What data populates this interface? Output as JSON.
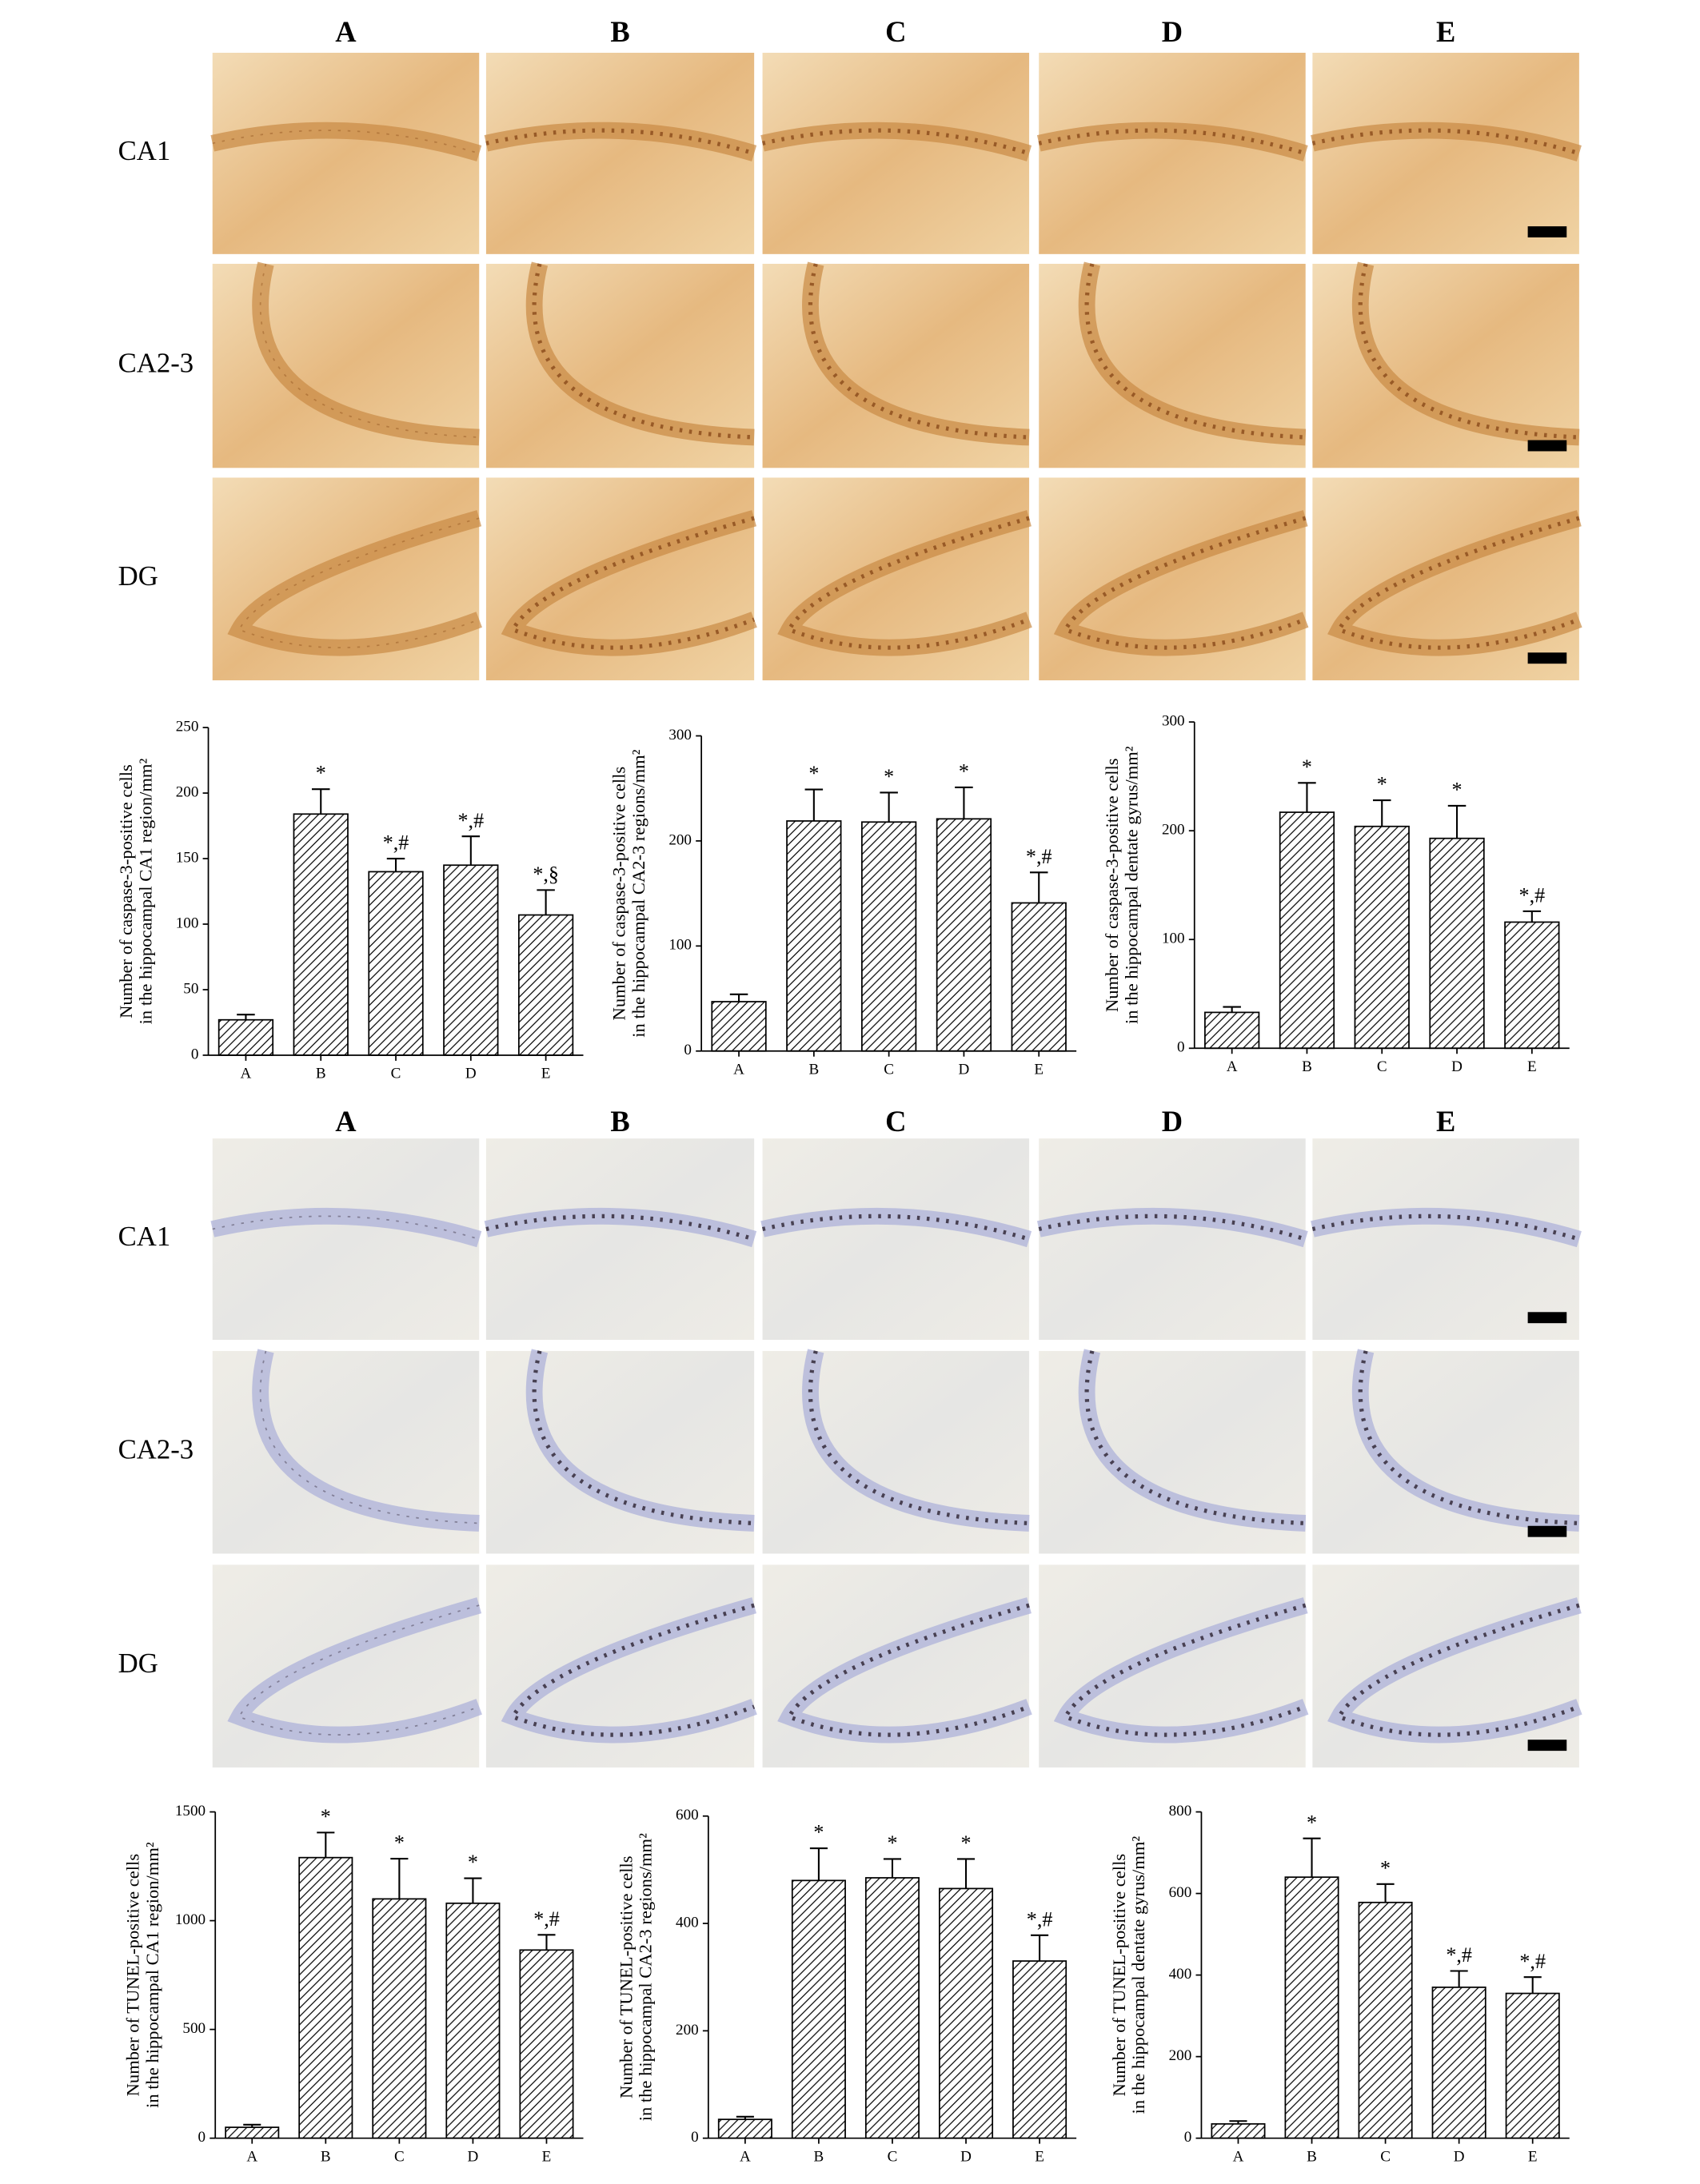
{
  "micrograph_grids": [
    {
      "columns": [
        "A",
        "B",
        "C",
        "D",
        "E"
      ],
      "rows": [
        "CA1",
        "CA2-3",
        "DG"
      ]
    },
    {
      "columns": [
        "A",
        "B",
        "C",
        "D",
        "E"
      ],
      "rows": [
        "CA1",
        "CA2-3",
        "DG"
      ]
    }
  ],
  "chart_data": [
    {
      "type": "bar",
      "ylabel": [
        "Number of caspase-3-positive cells",
        "in the hippocampal CA1 region/mm²"
      ],
      "categories": [
        "A",
        "B",
        "C",
        "D",
        "E"
      ],
      "values": [
        27,
        184,
        140,
        145,
        107
      ],
      "errors": [
        4,
        19,
        10,
        22,
        19
      ],
      "annotations": [
        null,
        "*",
        "*,#",
        "*,#",
        "*,§"
      ],
      "color": "#000000",
      "ylim": [
        0,
        250
      ],
      "yticks": [
        0,
        50,
        100,
        150,
        200,
        250
      ]
    },
    {
      "type": "bar",
      "ylabel": [
        "Number of caspase-3-positive cells",
        "in the hippocampal CA2-3 regions/mm²"
      ],
      "categories": [
        "A",
        "B",
        "C",
        "D",
        "E"
      ],
      "values": [
        47,
        219,
        218,
        221,
        141
      ],
      "errors": [
        7,
        30,
        28,
        30,
        29
      ],
      "annotations": [
        null,
        "*",
        "*",
        "*",
        "*,#"
      ],
      "color": "#000000",
      "ylim": [
        0,
        300
      ],
      "yticks": [
        0,
        100,
        200,
        300
      ]
    },
    {
      "type": "bar",
      "ylabel": [
        "Number of caspase-3-positive cells",
        "in the hippocampal dentate gyrus/mm²"
      ],
      "categories": [
        "A",
        "B",
        "C",
        "D",
        "E"
      ],
      "values": [
        33,
        217,
        204,
        193,
        116
      ],
      "errors": [
        5,
        27,
        24,
        30,
        10
      ],
      "annotations": [
        null,
        "*",
        "*",
        "*",
        "*,#"
      ],
      "color": "#000000",
      "ylim": [
        0,
        300
      ],
      "yticks": [
        0,
        100,
        200,
        300
      ]
    },
    {
      "type": "bar",
      "ylabel": [
        "Number of TUNEL-positive cells",
        "in the hippocampal CA1 region/mm²"
      ],
      "categories": [
        "A",
        "B",
        "C",
        "D",
        "E"
      ],
      "values": [
        50,
        1290,
        1100,
        1080,
        865
      ],
      "errors": [
        12,
        115,
        185,
        115,
        70
      ],
      "annotations": [
        null,
        "*",
        "*",
        "*",
        "*,#"
      ],
      "color": "#000000",
      "ylim": [
        0,
        1500
      ],
      "yticks": [
        0,
        500,
        1000,
        1500
      ]
    },
    {
      "type": "bar",
      "ylabel": [
        "Number of TUNEL-positive cells",
        "in the hippocampal CA2-3 regions/mm²"
      ],
      "categories": [
        "A",
        "B",
        "C",
        "D",
        "E"
      ],
      "values": [
        35,
        480,
        485,
        465,
        330
      ],
      "errors": [
        5,
        60,
        35,
        55,
        48
      ],
      "annotations": [
        null,
        "*",
        "*",
        "*",
        "*,#"
      ],
      "color": "#000000",
      "ylim": [
        0,
        600
      ],
      "yticks": [
        0,
        200,
        400,
        600
      ]
    },
    {
      "type": "bar",
      "ylabel": [
        "Number of TUNEL-positive cells",
        "in the hippocampal dentate gyrus/mm²"
      ],
      "categories": [
        "A",
        "B",
        "C",
        "D",
        "E"
      ],
      "values": [
        35,
        640,
        578,
        370,
        355
      ],
      "errors": [
        7,
        95,
        45,
        40,
        40
      ],
      "annotations": [
        null,
        "*",
        "*",
        "*,#",
        "*,#"
      ],
      "color": "#000000",
      "ylim": [
        0,
        800
      ],
      "yticks": [
        0,
        200,
        400,
        600,
        800
      ]
    }
  ]
}
